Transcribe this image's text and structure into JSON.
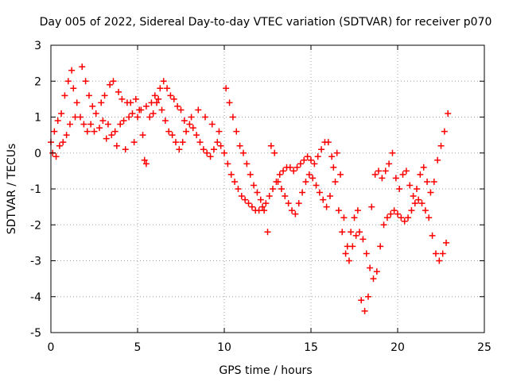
{
  "chart_data": {
    "type": "scatter",
    "title": "Day 005 of 2022, Sidereal Day-to-day VTEC variation (SDTVAR) for receiver p070",
    "xlabel": "GPS time / hours",
    "ylabel": "SDTVAR / TECUs",
    "xlim": [
      0,
      25
    ],
    "ylim": [
      -5,
      3
    ],
    "xticks": [
      0,
      5,
      10,
      15,
      20,
      25
    ],
    "yticks": [
      -5,
      -4,
      -3,
      -2,
      -1,
      0,
      1,
      2,
      3
    ],
    "grid": true,
    "marker": "+",
    "series": [
      {
        "name": "SDTVAR",
        "color": "#ff0000",
        "points": [
          [
            0.0,
            0.3
          ],
          [
            0.2,
            0.6
          ],
          [
            0.4,
            0.9
          ],
          [
            0.6,
            1.1
          ],
          [
            0.8,
            1.6
          ],
          [
            1.0,
            2.0
          ],
          [
            1.2,
            2.3
          ],
          [
            1.3,
            1.8
          ],
          [
            1.5,
            1.4
          ],
          [
            1.7,
            1.0
          ],
          [
            1.9,
            0.8
          ],
          [
            2.1,
            0.6
          ],
          [
            2.3,
            0.8
          ],
          [
            2.5,
            0.6
          ],
          [
            2.8,
            0.7
          ],
          [
            3.0,
            0.9
          ],
          [
            3.3,
            0.8
          ],
          [
            3.5,
            0.5
          ],
          [
            3.7,
            0.6
          ],
          [
            4.0,
            0.8
          ],
          [
            4.2,
            0.9
          ],
          [
            4.5,
            1.0
          ],
          [
            4.7,
            1.1
          ],
          [
            5.0,
            1.0
          ],
          [
            5.2,
            1.2
          ],
          [
            5.5,
            1.3
          ],
          [
            5.8,
            1.4
          ],
          [
            6.0,
            1.6
          ],
          [
            6.2,
            1.5
          ],
          [
            6.4,
            1.2
          ],
          [
            6.6,
            0.9
          ],
          [
            6.8,
            0.6
          ],
          [
            7.0,
            0.5
          ],
          [
            7.2,
            0.3
          ],
          [
            7.4,
            0.1
          ],
          [
            7.6,
            0.3
          ],
          [
            7.8,
            0.6
          ],
          [
            8.0,
            0.8
          ],
          [
            8.2,
            0.7
          ],
          [
            8.4,
            0.5
          ],
          [
            8.6,
            0.3
          ],
          [
            8.8,
            0.1
          ],
          [
            9.0,
            0.0
          ],
          [
            9.2,
            -0.1
          ],
          [
            9.4,
            0.1
          ],
          [
            9.6,
            0.3
          ],
          [
            9.8,
            0.2
          ],
          [
            10.0,
            0.0
          ],
          [
            10.2,
            -0.3
          ],
          [
            10.4,
            -0.6
          ],
          [
            10.6,
            -0.8
          ],
          [
            10.8,
            -1.0
          ],
          [
            11.0,
            -1.2
          ],
          [
            11.2,
            -1.3
          ],
          [
            11.4,
            -1.4
          ],
          [
            11.6,
            -1.5
          ],
          [
            11.8,
            -1.6
          ],
          [
            12.0,
            -1.6
          ],
          [
            12.2,
            -1.5
          ],
          [
            12.4,
            -1.4
          ],
          [
            12.6,
            -1.2
          ],
          [
            12.8,
            -1.0
          ],
          [
            13.0,
            -0.8
          ],
          [
            13.2,
            -0.6
          ],
          [
            13.4,
            -0.5
          ],
          [
            13.6,
            -0.4
          ],
          [
            13.8,
            -0.4
          ],
          [
            14.0,
            -0.5
          ],
          [
            14.2,
            -0.4
          ],
          [
            14.4,
            -0.3
          ],
          [
            14.6,
            -0.2
          ],
          [
            14.8,
            -0.1
          ],
          [
            15.0,
            -0.2
          ],
          [
            15.2,
            -0.3
          ],
          [
            15.4,
            -0.1
          ],
          [
            15.6,
            0.1
          ],
          [
            15.8,
            0.3
          ],
          [
            16.0,
            0.3
          ],
          [
            16.2,
            -0.1
          ],
          [
            16.4,
            -0.8
          ],
          [
            16.6,
            -1.6
          ],
          [
            16.8,
            -2.2
          ],
          [
            17.0,
            -2.8
          ],
          [
            17.2,
            -3.0
          ],
          [
            17.4,
            -2.6
          ],
          [
            17.6,
            -2.3
          ],
          [
            17.8,
            -2.2
          ],
          [
            18.0,
            -2.4
          ],
          [
            18.2,
            -2.8
          ],
          [
            18.4,
            -3.2
          ],
          [
            18.6,
            -3.5
          ],
          [
            18.8,
            -3.3
          ],
          [
            19.0,
            -2.6
          ],
          [
            19.2,
            -2.0
          ],
          [
            19.4,
            -1.8
          ],
          [
            19.6,
            -1.7
          ],
          [
            19.8,
            -1.6
          ],
          [
            20.0,
            -1.7
          ],
          [
            20.2,
            -1.8
          ],
          [
            20.4,
            -1.9
          ],
          [
            20.6,
            -1.8
          ],
          [
            20.8,
            -1.6
          ],
          [
            21.0,
            -1.4
          ],
          [
            21.2,
            -1.3
          ],
          [
            21.4,
            -1.4
          ],
          [
            21.6,
            -1.6
          ],
          [
            21.8,
            -1.8
          ],
          [
            22.0,
            -2.3
          ],
          [
            22.2,
            -2.8
          ],
          [
            22.4,
            -3.0
          ],
          [
            22.6,
            -2.8
          ],
          [
            22.8,
            -2.5
          ],
          [
            0.1,
            0.0
          ],
          [
            0.3,
            -0.1
          ],
          [
            0.5,
            0.2
          ],
          [
            0.7,
            0.3
          ],
          [
            0.9,
            0.5
          ],
          [
            1.1,
            0.8
          ],
          [
            1.4,
            1.0
          ],
          [
            1.8,
            2.4
          ],
          [
            2.0,
            2.0
          ],
          [
            2.2,
            1.6
          ],
          [
            2.4,
            1.3
          ],
          [
            2.6,
            1.1
          ],
          [
            2.9,
            1.4
          ],
          [
            3.1,
            1.6
          ],
          [
            3.4,
            1.9
          ],
          [
            3.6,
            2.0
          ],
          [
            3.9,
            1.7
          ],
          [
            4.1,
            1.5
          ],
          [
            4.4,
            1.4
          ],
          [
            4.6,
            1.4
          ],
          [
            4.9,
            1.5
          ],
          [
            5.1,
            1.2
          ],
          [
            5.3,
            0.5
          ],
          [
            5.4,
            -0.2
          ],
          [
            5.5,
            -0.3
          ],
          [
            5.7,
            1.0
          ],
          [
            5.9,
            1.1
          ],
          [
            6.1,
            1.4
          ],
          [
            6.3,
            1.8
          ],
          [
            6.5,
            2.0
          ],
          [
            6.7,
            1.8
          ],
          [
            6.9,
            1.6
          ],
          [
            7.1,
            1.5
          ],
          [
            7.3,
            1.3
          ],
          [
            7.5,
            1.2
          ],
          [
            3.2,
            0.4
          ],
          [
            3.8,
            0.2
          ],
          [
            4.3,
            0.1
          ],
          [
            4.8,
            0.3
          ],
          [
            7.7,
            0.9
          ],
          [
            8.1,
            1.0
          ],
          [
            8.5,
            1.2
          ],
          [
            8.9,
            1.0
          ],
          [
            9.3,
            0.8
          ],
          [
            9.7,
            0.6
          ],
          [
            10.1,
            1.8
          ],
          [
            10.3,
            1.4
          ],
          [
            10.5,
            1.0
          ],
          [
            10.7,
            0.6
          ],
          [
            10.9,
            0.2
          ],
          [
            11.1,
            0.0
          ],
          [
            11.3,
            -0.3
          ],
          [
            11.5,
            -0.6
          ],
          [
            11.7,
            -0.9
          ],
          [
            11.9,
            -1.1
          ],
          [
            12.1,
            -1.3
          ],
          [
            12.3,
            -1.6
          ],
          [
            12.5,
            -2.2
          ],
          [
            12.7,
            0.2
          ],
          [
            12.9,
            0.0
          ],
          [
            13.1,
            -0.8
          ],
          [
            13.3,
            -1.0
          ],
          [
            13.5,
            -1.2
          ],
          [
            13.7,
            -1.4
          ],
          [
            13.9,
            -1.6
          ],
          [
            14.1,
            -1.7
          ],
          [
            14.3,
            -1.4
          ],
          [
            14.5,
            -1.1
          ],
          [
            14.7,
            -0.8
          ],
          [
            14.9,
            -0.6
          ],
          [
            15.1,
            -0.7
          ],
          [
            15.3,
            -0.9
          ],
          [
            15.5,
            -1.1
          ],
          [
            15.7,
            -1.3
          ],
          [
            15.9,
            -1.5
          ],
          [
            16.1,
            -1.2
          ],
          [
            16.3,
            -0.4
          ],
          [
            16.5,
            0.0
          ],
          [
            16.7,
            -0.6
          ],
          [
            16.9,
            -1.8
          ],
          [
            17.1,
            -2.6
          ],
          [
            17.3,
            -2.2
          ],
          [
            17.5,
            -1.8
          ],
          [
            17.7,
            -1.6
          ],
          [
            17.9,
            -4.1
          ],
          [
            18.1,
            -4.4
          ],
          [
            18.3,
            -4.0
          ],
          [
            18.5,
            -1.5
          ],
          [
            18.7,
            -0.6
          ],
          [
            18.9,
            -0.5
          ],
          [
            19.1,
            -0.7
          ],
          [
            19.3,
            -0.5
          ],
          [
            19.5,
            -0.3
          ],
          [
            19.7,
            0.0
          ],
          [
            19.9,
            -0.7
          ],
          [
            20.1,
            -1.0
          ],
          [
            20.3,
            -0.6
          ],
          [
            20.5,
            -0.5
          ],
          [
            20.7,
            -0.9
          ],
          [
            20.9,
            -1.2
          ],
          [
            21.1,
            -1.0
          ],
          [
            21.3,
            -0.6
          ],
          [
            21.5,
            -0.4
          ],
          [
            21.7,
            -0.8
          ],
          [
            21.9,
            -1.1
          ],
          [
            22.1,
            -0.8
          ],
          [
            22.3,
            -0.2
          ],
          [
            22.5,
            0.2
          ],
          [
            22.7,
            0.6
          ],
          [
            22.9,
            1.1
          ]
        ]
      }
    ]
  }
}
